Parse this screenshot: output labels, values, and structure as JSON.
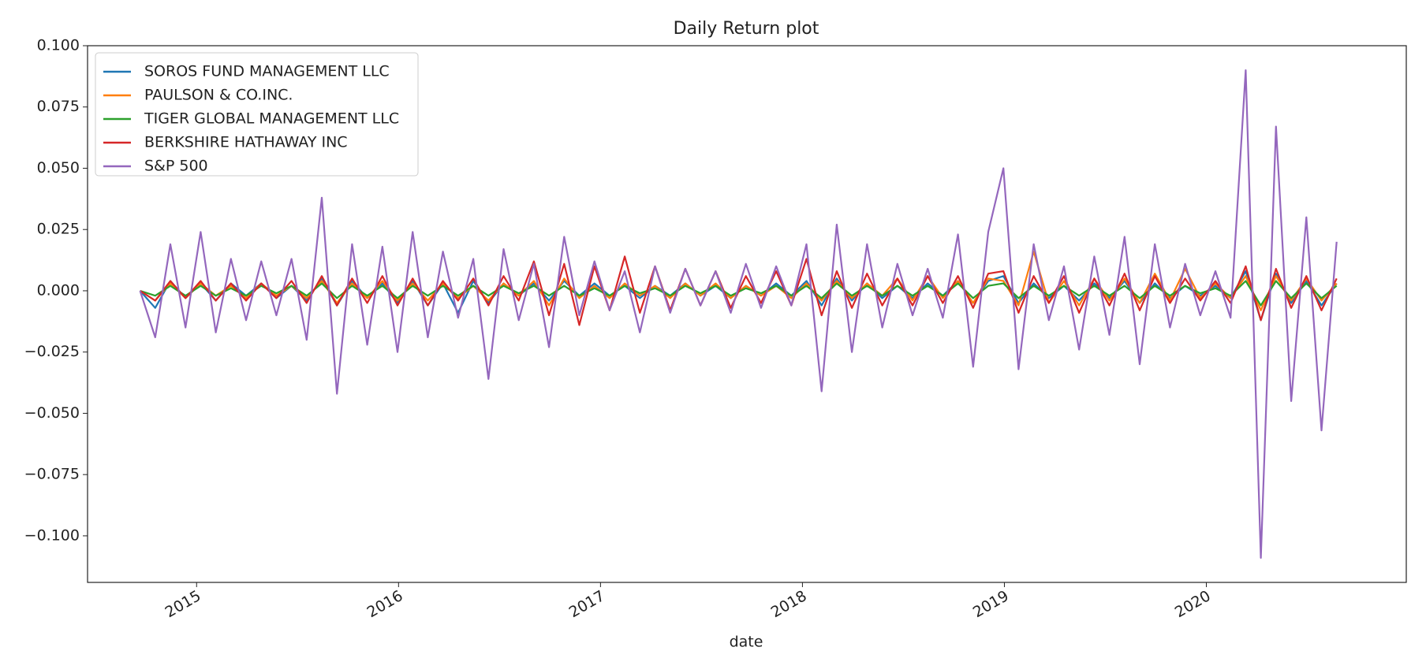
{
  "chart_data": {
    "type": "line",
    "title": "Daily Return plot",
    "xlabel": "date",
    "x": [
      2014.72,
      2014.795,
      2014.87,
      2014.945,
      2015.02,
      2015.095,
      2015.17,
      2015.245,
      2015.32,
      2015.395,
      2015.47,
      2015.545,
      2015.62,
      2015.695,
      2015.77,
      2015.845,
      2015.92,
      2015.995,
      2016.07,
      2016.145,
      2016.22,
      2016.295,
      2016.37,
      2016.445,
      2016.52,
      2016.595,
      2016.67,
      2016.745,
      2016.82,
      2016.895,
      2016.97,
      2017.045,
      2017.12,
      2017.195,
      2017.27,
      2017.345,
      2017.42,
      2017.495,
      2017.57,
      2017.645,
      2017.72,
      2017.795,
      2017.87,
      2017.945,
      2018.02,
      2018.095,
      2018.17,
      2018.245,
      2018.32,
      2018.395,
      2018.47,
      2018.545,
      2018.62,
      2018.695,
      2018.77,
      2018.845,
      2018.92,
      2018.995,
      2019.07,
      2019.145,
      2019.22,
      2019.295,
      2019.37,
      2019.445,
      2019.52,
      2019.595,
      2019.67,
      2019.745,
      2019.82,
      2019.895,
      2019.97,
      2020.045,
      2020.12,
      2020.195,
      2020.27,
      2020.345,
      2020.42,
      2020.495,
      2020.57,
      2020.645
    ],
    "series": [
      {
        "name": "SOROS FUND MANAGEMENT LLC",
        "color": "#1f77b4",
        "values": [
          0,
          -0.007,
          0.004,
          -0.003,
          0.003,
          -0.004,
          0.003,
          -0.002,
          0.003,
          -0.003,
          0.002,
          -0.004,
          0.005,
          -0.006,
          0.004,
          -0.003,
          0.003,
          -0.005,
          0.004,
          -0.006,
          0.003,
          -0.009,
          0.004,
          -0.005,
          0.003,
          -0.002,
          0.003,
          -0.004,
          0.004,
          -0.002,
          0.003,
          -0.002,
          0.002,
          -0.003,
          0.002,
          -0.002,
          0.003,
          -0.002,
          0.002,
          -0.003,
          0.002,
          -0.002,
          0.003,
          -0.002,
          0.004,
          -0.006,
          0.005,
          -0.004,
          0.003,
          -0.003,
          0.002,
          -0.003,
          0.003,
          -0.002,
          0.004,
          -0.005,
          0.004,
          0.006,
          -0.005,
          0.003,
          -0.003,
          0.002,
          -0.004,
          0.003,
          -0.003,
          0.004,
          -0.005,
          0.003,
          -0.003,
          0.002,
          -0.002,
          0.002,
          -0.003,
          0.008,
          -0.012,
          0.007,
          -0.005,
          0.004,
          -0.006,
          0.003
        ]
      },
      {
        "name": "PAULSON & CO.INC.",
        "color": "#ff7f0e",
        "values": [
          0,
          -0.004,
          0.003,
          -0.003,
          0.003,
          -0.002,
          0.002,
          -0.003,
          0.003,
          -0.002,
          0.002,
          -0.003,
          0.004,
          -0.005,
          0.003,
          -0.003,
          0.004,
          -0.004,
          0.003,
          -0.004,
          0.003,
          -0.003,
          0.002,
          -0.004,
          0.003,
          -0.002,
          0.004,
          -0.006,
          0.005,
          -0.003,
          0.002,
          -0.003,
          0.003,
          -0.002,
          0.002,
          -0.003,
          0.003,
          -0.002,
          0.003,
          -0.003,
          0.002,
          -0.002,
          0.002,
          -0.003,
          0.003,
          -0.004,
          0.004,
          -0.003,
          0.003,
          -0.002,
          0.005,
          -0.004,
          0.006,
          -0.003,
          0.004,
          -0.005,
          0.005,
          0.004,
          -0.006,
          0.016,
          -0.005,
          0.004,
          -0.006,
          0.005,
          -0.004,
          0.005,
          -0.005,
          0.007,
          -0.004,
          0.009,
          -0.003,
          0.003,
          -0.003,
          0.006,
          -0.008,
          0.006,
          -0.004,
          0.005,
          -0.004,
          0.003
        ]
      },
      {
        "name": "TIGER GLOBAL MANAGEMENT LLC",
        "color": "#2ca02c",
        "values": [
          0,
          -0.002,
          0.002,
          -0.002,
          0.002,
          -0.002,
          0.001,
          -0.002,
          0.002,
          -0.001,
          0.002,
          -0.002,
          0.003,
          -0.003,
          0.002,
          -0.002,
          0.002,
          -0.003,
          0.002,
          -0.002,
          0.002,
          -0.002,
          0.002,
          -0.002,
          0.002,
          -0.001,
          0.002,
          -0.002,
          0.002,
          -0.002,
          0.001,
          -0.002,
          0.002,
          -0.001,
          0.001,
          -0.002,
          0.002,
          -0.001,
          0.002,
          -0.002,
          0.001,
          -0.001,
          0.002,
          -0.002,
          0.002,
          -0.003,
          0.003,
          -0.002,
          0.002,
          -0.002,
          0.002,
          -0.002,
          0.002,
          -0.002,
          0.003,
          -0.003,
          0.002,
          0.003,
          -0.003,
          0.002,
          -0.002,
          0.002,
          -0.002,
          0.002,
          -0.002,
          0.002,
          -0.003,
          0.002,
          -0.002,
          0.002,
          -0.001,
          0.001,
          -0.002,
          0.004,
          -0.006,
          0.004,
          -0.003,
          0.003,
          -0.003,
          0.002
        ]
      },
      {
        "name": "BERKSHIRE HATHAWAY INC",
        "color": "#d62728",
        "values": [
          0,
          -0.004,
          0.004,
          -0.003,
          0.004,
          -0.004,
          0.003,
          -0.004,
          0.003,
          -0.003,
          0.004,
          -0.005,
          0.006,
          -0.006,
          0.005,
          -0.005,
          0.006,
          -0.006,
          0.005,
          -0.006,
          0.004,
          -0.004,
          0.005,
          -0.006,
          0.006,
          -0.004,
          0.012,
          -0.01,
          0.011,
          -0.014,
          0.01,
          -0.008,
          0.014,
          -0.009,
          0.01,
          -0.008,
          0.009,
          -0.006,
          0.008,
          -0.007,
          0.006,
          -0.005,
          0.008,
          -0.006,
          0.013,
          -0.01,
          0.008,
          -0.007,
          0.007,
          -0.006,
          0.005,
          -0.006,
          0.006,
          -0.005,
          0.006,
          -0.007,
          0.007,
          0.008,
          -0.009,
          0.006,
          -0.005,
          0.006,
          -0.009,
          0.005,
          -0.006,
          0.007,
          -0.008,
          0.006,
          -0.005,
          0.005,
          -0.004,
          0.004,
          -0.005,
          0.01,
          -0.012,
          0.009,
          -0.007,
          0.006,
          -0.008,
          0.005
        ]
      },
      {
        "name": "S&P 500",
        "color": "#9467bd",
        "values": [
          0,
          -0.019,
          0.019,
          -0.015,
          0.024,
          -0.017,
          0.013,
          -0.012,
          0.012,
          -0.01,
          0.013,
          -0.02,
          0.038,
          -0.042,
          0.019,
          -0.022,
          0.018,
          -0.025,
          0.024,
          -0.019,
          0.016,
          -0.011,
          0.013,
          -0.036,
          0.017,
          -0.012,
          0.011,
          -0.023,
          0.022,
          -0.01,
          0.012,
          -0.008,
          0.008,
          -0.017,
          0.01,
          -0.009,
          0.009,
          -0.006,
          0.008,
          -0.009,
          0.011,
          -0.007,
          0.01,
          -0.006,
          0.019,
          -0.041,
          0.027,
          -0.025,
          0.019,
          -0.015,
          0.011,
          -0.01,
          0.009,
          -0.011,
          0.023,
          -0.031,
          0.024,
          0.05,
          -0.032,
          0.019,
          -0.012,
          0.01,
          -0.024,
          0.014,
          -0.018,
          0.022,
          -0.03,
          0.019,
          -0.015,
          0.011,
          -0.01,
          0.008,
          -0.011,
          0.09,
          -0.109,
          0.067,
          -0.045,
          0.03,
          -0.057,
          0.02
        ]
      }
    ],
    "xlim": [
      2014.46,
      2020.99
    ],
    "xticks": [
      2015,
      2016,
      2017,
      2018,
      2019,
      2020
    ],
    "ylim": [
      -0.119,
      0.1
    ],
    "yticks": [
      {
        "value": 0.1,
        "label": "0.100"
      },
      {
        "value": 0.075,
        "label": "0.075"
      },
      {
        "value": 0.05,
        "label": "0.050"
      },
      {
        "value": 0.025,
        "label": "0.025"
      },
      {
        "value": 0,
        "label": "0.000"
      },
      {
        "value": -0.025,
        "label": "−0.025"
      },
      {
        "value": -0.05,
        "label": "−0.050"
      },
      {
        "value": -0.075,
        "label": "−0.075"
      },
      {
        "value": -0.1,
        "label": "−0.100"
      }
    ],
    "legend": "upper left"
  }
}
